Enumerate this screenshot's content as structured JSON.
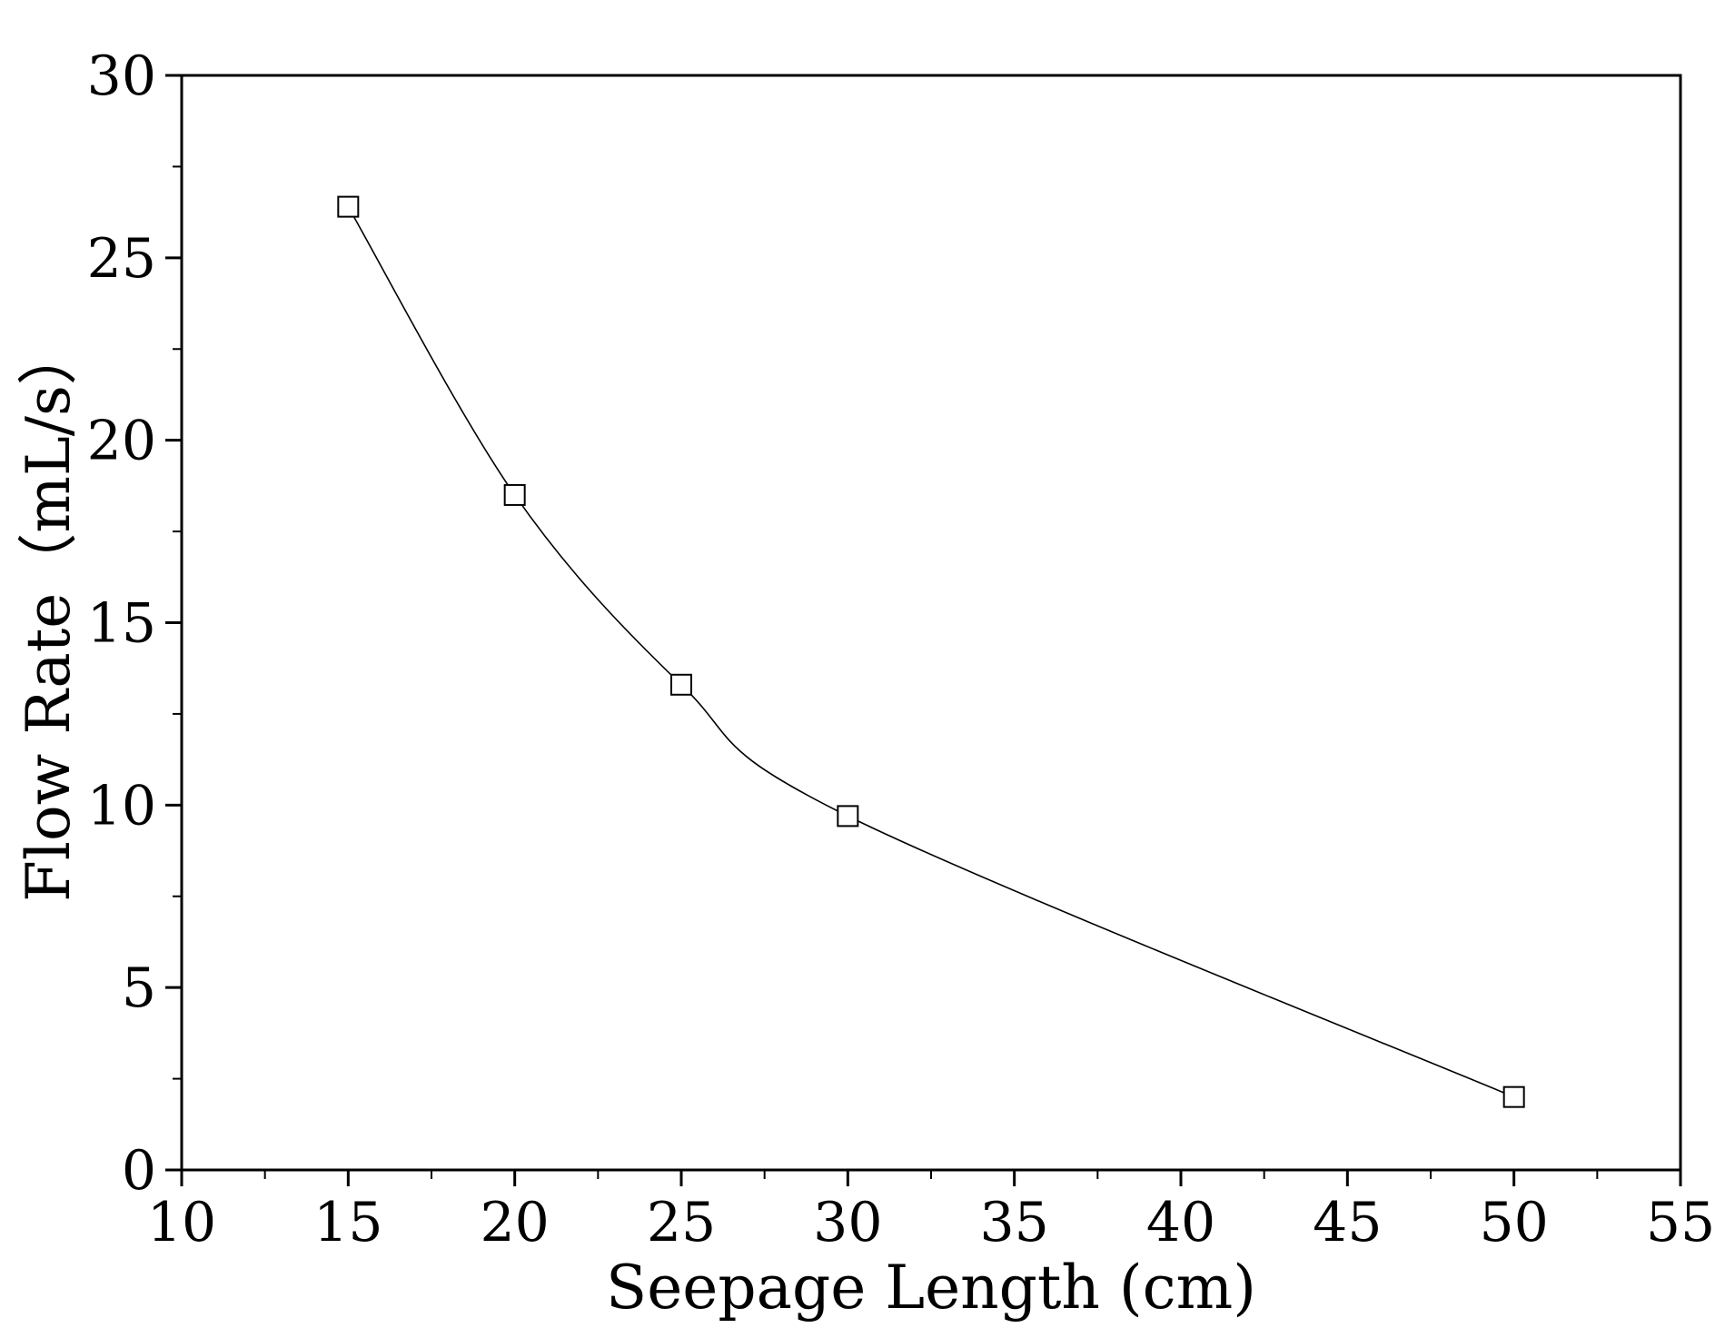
{
  "chart_data": {
    "type": "line",
    "title": "",
    "xlabel": "Seepage Length (cm)",
    "ylabel": "Flow Rate（mL/s）",
    "xlim": [
      10,
      55
    ],
    "ylim": [
      0,
      30
    ],
    "x_ticks": [
      10,
      15,
      20,
      25,
      30,
      35,
      40,
      45,
      50,
      55
    ],
    "y_ticks": [
      0,
      5,
      10,
      15,
      20,
      25,
      30
    ],
    "x_tick_labels": [
      "10",
      "15",
      "20",
      "25",
      "30",
      "35",
      "40",
      "45",
      "50",
      "55"
    ],
    "y_tick_labels": [
      "0",
      "5",
      "10",
      "15",
      "20",
      "25",
      "30"
    ],
    "grid": false,
    "legend": "none",
    "marker": "open-square",
    "line_style": "smooth",
    "colors": {
      "line": "#000000",
      "marker_fill": "#ffffff",
      "axis": "#000000"
    },
    "series": [
      {
        "x": [
          15,
          20,
          25,
          30,
          50
        ],
        "y": [
          26.4,
          18.5,
          13.3,
          9.7,
          2.0
        ]
      }
    ]
  }
}
